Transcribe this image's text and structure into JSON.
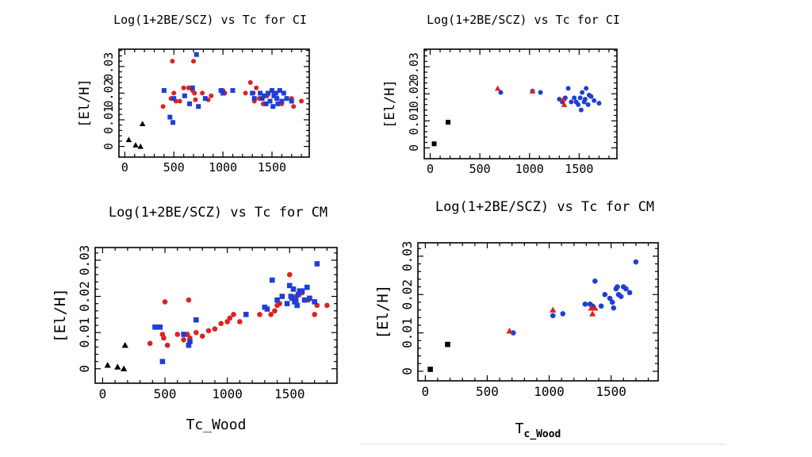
{
  "colors": {
    "red": "#dd2222",
    "blue": "#1f3fd2",
    "black": "#000000"
  },
  "chart_data": [
    {
      "type": "scatter",
      "title": "Log(1+2BE/SCZ) vs Tc for CI",
      "xlabel": "",
      "xlabel_sub": "",
      "ylabel": "[El/H]",
      "xlim": [
        -60,
        1880
      ],
      "ylim": [
        -0.004,
        0.0365
      ],
      "xticks": [
        0,
        500,
        1000,
        1500
      ],
      "xtick_labels": [
        "0",
        "500",
        "1000",
        "1500"
      ],
      "yticks": [
        0,
        0.01,
        0.02,
        0.03
      ],
      "ytick_labels": [
        "0",
        "0.01",
        "0.02",
        "0.03"
      ],
      "series": [
        {
          "name": "black-triangles",
          "color": "black",
          "marker": "triangle",
          "x": [
            40,
            110,
            160,
            180
          ],
          "y": [
            0.0025,
            0.0005,
            0.0,
            0.0085
          ]
        },
        {
          "name": "red-circles",
          "color": "red",
          "marker": "circle",
          "x": [
            390,
            470,
            485,
            500,
            520,
            560,
            600,
            650,
            690,
            700,
            710,
            720,
            790,
            850,
            880,
            1000,
            1020,
            1230,
            1280,
            1310,
            1320,
            1340,
            1370,
            1410,
            1450,
            1520,
            1600,
            1700,
            1720,
            1800
          ],
          "y": [
            0.015,
            0.018,
            0.032,
            0.02,
            0.017,
            0.017,
            0.022,
            0.022,
            0.021,
            0.032,
            0.02,
            0.0175,
            0.02,
            0.0175,
            0.019,
            0.021,
            0.02,
            0.02,
            0.024,
            0.02,
            0.017,
            0.022,
            0.018,
            0.016,
            0.019,
            0.02,
            0.016,
            0.018,
            0.015,
            0.017
          ]
        },
        {
          "name": "blue-squares",
          "color": "blue",
          "marker": "square",
          "x": [
            400,
            460,
            490,
            500,
            610,
            660,
            690,
            730,
            750,
            820,
            980,
            1000,
            1100,
            1300,
            1320,
            1380,
            1400,
            1420,
            1440,
            1460,
            1480,
            1500,
            1510,
            1520,
            1540,
            1550,
            1560,
            1580,
            1600,
            1620,
            1650,
            1700
          ],
          "y": [
            0.021,
            0.011,
            0.009,
            0.018,
            0.019,
            0.016,
            0.022,
            0.0345,
            0.015,
            0.018,
            0.021,
            0.02,
            0.021,
            0.02,
            0.018,
            0.02,
            0.018,
            0.019,
            0.016,
            0.02,
            0.017,
            0.021,
            0.015,
            0.019,
            0.02,
            0.018,
            0.016,
            0.021,
            0.017,
            0.02,
            0.018,
            0.017
          ]
        }
      ]
    },
    {
      "type": "scatter",
      "title": "Log(1+2BE/SCZ) vs Tc for CI",
      "xlabel": "",
      "xlabel_sub": "",
      "ylabel": "[El/H]",
      "xlim": [
        -60,
        1880
      ],
      "ylim": [
        -0.004,
        0.0365
      ],
      "xticks": [
        0,
        500,
        1000,
        1500
      ],
      "xtick_labels": [
        "0",
        "500",
        "1000",
        "1500"
      ],
      "yticks": [
        0,
        0.01,
        0.02,
        0.03
      ],
      "ytick_labels": [
        "0",
        "0.01",
        "0.02",
        "0.03"
      ],
      "series": [
        {
          "name": "black-squares",
          "color": "black",
          "marker": "square",
          "x": [
            40,
            180
          ],
          "y": [
            0.0015,
            0.0095
          ]
        },
        {
          "name": "blue-circles",
          "color": "blue",
          "marker": "circle",
          "x": [
            710,
            1030,
            1110,
            1300,
            1330,
            1360,
            1390,
            1420,
            1450,
            1470,
            1490,
            1510,
            1520,
            1530,
            1550,
            1560,
            1570,
            1590,
            1600,
            1620,
            1650,
            1700
          ],
          "y": [
            0.0205,
            0.021,
            0.0205,
            0.018,
            0.017,
            0.0185,
            0.022,
            0.017,
            0.0185,
            0.017,
            0.016,
            0.0185,
            0.014,
            0.0205,
            0.017,
            0.018,
            0.022,
            0.016,
            0.0195,
            0.019,
            0.0175,
            0.0165
          ]
        },
        {
          "name": "red-triangles",
          "color": "red",
          "marker": "triangle",
          "x": [
            680,
            1030,
            1340,
            1350
          ],
          "y": [
            0.022,
            0.021,
            0.018,
            0.016
          ]
        }
      ]
    },
    {
      "type": "scatter",
      "title": "Log(1+2BE/SCZ) vs Tc for CM",
      "xlabel": "Tc_Wood",
      "xlabel_sub": "",
      "ylabel": "[El/H]",
      "xlim": [
        -60,
        1880
      ],
      "ylim": [
        -0.004,
        0.0335
      ],
      "xticks": [
        0,
        500,
        1000,
        1500
      ],
      "xtick_labels": [
        "0",
        "500",
        "1000",
        "1500"
      ],
      "yticks": [
        0,
        0.01,
        0.02,
        0.03
      ],
      "ytick_labels": [
        "0",
        "0.01",
        "0.02",
        "0.03"
      ],
      "series": [
        {
          "name": "black-triangles",
          "color": "black",
          "marker": "triangle",
          "x": [
            40,
            120,
            170,
            180
          ],
          "y": [
            0.001,
            0.0005,
            0.0,
            0.0065
          ]
        },
        {
          "name": "red-circles",
          "color": "red",
          "marker": "circle",
          "x": [
            380,
            480,
            490,
            500,
            520,
            600,
            650,
            680,
            690,
            700,
            750,
            800,
            850,
            900,
            950,
            1000,
            1020,
            1050,
            1100,
            1260,
            1300,
            1350,
            1380,
            1400,
            1420,
            1500,
            1550,
            1600,
            1650,
            1700,
            1720,
            1800
          ],
          "y": [
            0.007,
            0.0095,
            0.0085,
            0.0185,
            0.0065,
            0.0095,
            0.008,
            0.0095,
            0.019,
            0.0085,
            0.01,
            0.009,
            0.0105,
            0.011,
            0.0125,
            0.013,
            0.014,
            0.015,
            0.013,
            0.015,
            0.017,
            0.015,
            0.016,
            0.0175,
            0.018,
            0.026,
            0.02,
            0.021,
            0.019,
            0.015,
            0.0175,
            0.0175
          ]
        },
        {
          "name": "blue-squares",
          "color": "blue",
          "marker": "square",
          "x": [
            420,
            460,
            480,
            650,
            690,
            700,
            750,
            1150,
            1300,
            1320,
            1360,
            1400,
            1440,
            1480,
            1500,
            1510,
            1520,
            1530,
            1540,
            1550,
            1560,
            1570,
            1580,
            1600,
            1620,
            1640,
            1660,
            1700,
            1720
          ],
          "y": [
            0.0115,
            0.0115,
            0.002,
            0.0095,
            0.0065,
            0.0075,
            0.0135,
            0.015,
            0.017,
            0.0165,
            0.0245,
            0.019,
            0.02,
            0.018,
            0.023,
            0.02,
            0.0195,
            0.022,
            0.0185,
            0.019,
            0.0175,
            0.0205,
            0.0215,
            0.0215,
            0.019,
            0.0225,
            0.0195,
            0.0185,
            0.029
          ]
        }
      ]
    },
    {
      "type": "scatter",
      "title": "Log(1+2BE/SCZ) vs Tc for CM",
      "xlabel": "T",
      "xlabel_sub": "c_Wood",
      "ylabel": "[El/H]",
      "xlim": [
        -60,
        1880
      ],
      "ylim": [
        -0.0025,
        0.0335
      ],
      "xticks": [
        0,
        500,
        1000,
        1500
      ],
      "xtick_labels": [
        "0",
        "500",
        "1000",
        "1500"
      ],
      "yticks": [
        0,
        0.01,
        0.02,
        0.03
      ],
      "ytick_labels": [
        "0",
        "0.01",
        "0.02",
        "0.03"
      ],
      "series": [
        {
          "name": "black-squares",
          "color": "black",
          "marker": "square",
          "x": [
            40,
            180
          ],
          "y": [
            0.0005,
            0.007
          ]
        },
        {
          "name": "blue-circles",
          "color": "blue",
          "marker": "circle",
          "x": [
            710,
            1030,
            1110,
            1290,
            1330,
            1350,
            1370,
            1420,
            1450,
            1490,
            1510,
            1520,
            1540,
            1550,
            1560,
            1580,
            1600,
            1620,
            1650,
            1700
          ],
          "y": [
            0.01,
            0.0145,
            0.015,
            0.0175,
            0.0175,
            0.017,
            0.0235,
            0.017,
            0.02,
            0.019,
            0.018,
            0.0165,
            0.0215,
            0.022,
            0.02,
            0.0195,
            0.022,
            0.0215,
            0.0205,
            0.0285
          ]
        },
        {
          "name": "red-triangles",
          "color": "red",
          "marker": "triangle",
          "x": [
            680,
            1030,
            1340,
            1350,
            1370
          ],
          "y": [
            0.0105,
            0.016,
            0.0165,
            0.015,
            0.0165
          ]
        }
      ]
    }
  ]
}
